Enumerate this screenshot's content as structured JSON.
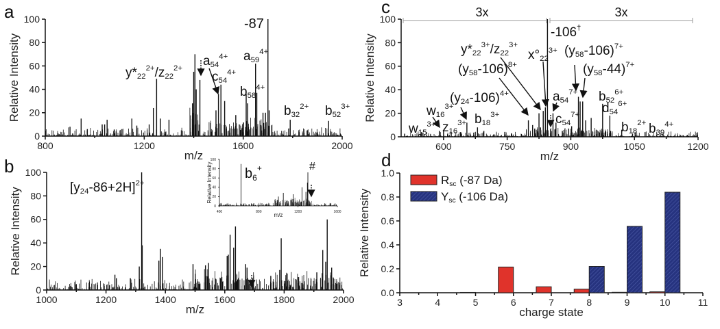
{
  "panel_labels": [
    "a",
    "b",
    "c",
    "d"
  ],
  "chart_data": [
    {
      "type": "line",
      "panel": "a",
      "xlabel": "m/z",
      "ylabel": "Relative Intensity",
      "xlim": [
        800,
        2000
      ],
      "ylim": [
        0,
        100
      ],
      "xticks": [
        800,
        1200,
        1600,
        2000
      ],
      "yticks": [
        0,
        20,
        40,
        60,
        80,
        100
      ],
      "peaks": [
        [
          900,
          8
        ],
        [
          945,
          15
        ],
        [
          970,
          6
        ],
        [
          1030,
          10
        ],
        [
          1040,
          10
        ],
        [
          1050,
          14
        ],
        [
          1110,
          6
        ],
        [
          1150,
          15
        ],
        [
          1170,
          9
        ],
        [
          1220,
          10
        ],
        [
          1237,
          24
        ],
        [
          1250,
          49
        ],
        [
          1265,
          15
        ],
        [
          1300,
          14
        ],
        [
          1395,
          28
        ],
        [
          1400,
          55
        ],
        [
          1405,
          70
        ],
        [
          1410,
          40
        ],
        [
          1425,
          48
        ],
        [
          1490,
          22
        ],
        [
          1500,
          36
        ],
        [
          1510,
          44
        ],
        [
          1525,
          30
        ],
        [
          1570,
          18
        ],
        [
          1612,
          36
        ],
        [
          1618,
          28
        ],
        [
          1650,
          62
        ],
        [
          1655,
          37
        ],
        [
          1680,
          20
        ],
        [
          1690,
          20
        ],
        [
          1700,
          100
        ],
        [
          1705,
          22
        ],
        [
          1790,
          14
        ],
        [
          1945,
          13
        ]
      ],
      "annotations": [
        {
          "segs": [
            [
              "",
              "-87"
            ]
          ]
        },
        {
          "segs": [
            [
              "",
              "y*"
            ],
            [
              "sub",
              "22"
            ],
            [
              "sup",
              "2+"
            ],
            [
              "",
              "/z"
            ],
            [
              "sub",
              "22"
            ],
            [
              "sup",
              "2+"
            ]
          ]
        },
        {
          "segs": [
            [
              "",
              "a"
            ],
            [
              "sub",
              "54"
            ],
            [
              "sup",
              "4+"
            ]
          ]
        },
        {
          "segs": [
            [
              "",
              "c"
            ],
            [
              "sub",
              "54"
            ],
            [
              "sup",
              "4+"
            ]
          ]
        },
        {
          "segs": [
            [
              "",
              "b"
            ],
            [
              "sub",
              "58"
            ],
            [
              "sup",
              "4+"
            ]
          ]
        },
        {
          "segs": [
            [
              "",
              "a"
            ],
            [
              "sub",
              "59"
            ],
            [
              "sup",
              "4+"
            ]
          ]
        },
        {
          "segs": [
            [
              "",
              "b"
            ],
            [
              "sub",
              "32"
            ],
            [
              "sup",
              "2+"
            ]
          ]
        },
        {
          "segs": [
            [
              "",
              "b"
            ],
            [
              "sub",
              "52"
            ],
            [
              "sup",
              "3+"
            ]
          ]
        }
      ]
    },
    {
      "type": "line",
      "panel": "b",
      "xlabel": "m/z",
      "ylabel": "Relative Intensity",
      "xlim": [
        1000,
        2000
      ],
      "ylim": [
        0,
        100
      ],
      "xticks": [
        1000,
        1200,
        1400,
        1600,
        1800,
        2000
      ],
      "yticks": [
        0,
        20,
        40,
        60,
        80,
        100
      ],
      "peaks": [
        [
          1230,
          13
        ],
        [
          1235,
          10
        ],
        [
          1282,
          10
        ],
        [
          1312,
          20
        ],
        [
          1320,
          100
        ],
        [
          1322,
          38
        ],
        [
          1378,
          25
        ],
        [
          1383,
          35
        ],
        [
          1390,
          28
        ],
        [
          1493,
          22
        ],
        [
          1535,
          21
        ],
        [
          1545,
          23
        ],
        [
          1608,
          29
        ],
        [
          1612,
          30
        ],
        [
          1618,
          47
        ],
        [
          1630,
          36
        ],
        [
          1636,
          54
        ],
        [
          1670,
          22
        ],
        [
          1675,
          19
        ],
        [
          1755,
          12
        ],
        [
          1785,
          17
        ],
        [
          1790,
          44
        ],
        [
          1810,
          14
        ],
        [
          1910,
          15
        ],
        [
          1930,
          34
        ],
        [
          1940,
          24
        ],
        [
          1945,
          60
        ],
        [
          1960,
          19
        ]
      ],
      "annotations": [
        {
          "segs": [
            [
              "",
              "[y"
            ],
            [
              "sub",
              "24"
            ],
            [
              "",
              "-86+2H]"
            ],
            [
              "sup",
              "2+"
            ]
          ]
        }
      ],
      "inset": {
        "xlabel": "m/z",
        "ylabel": "Relative Intensity",
        "xlim": [
          400,
          1600
        ],
        "ylim": [
          0,
          100
        ],
        "xticks": [
          400,
          800,
          1200,
          1600
        ],
        "yticks": [
          0,
          20,
          40,
          60,
          80,
          100
        ],
        "peaks": [
          [
            620,
            90
          ],
          [
            1000,
            20
          ],
          [
            1050,
            28
          ],
          [
            1150,
            25
          ],
          [
            1240,
            40
          ],
          [
            1280,
            30
          ],
          [
            1300,
            72
          ],
          [
            1295,
            50
          ]
        ],
        "annotations": [
          {
            "segs": [
              [
                "",
                "b"
              ],
              [
                "sub",
                "6"
              ],
              [
                "sup",
                "+"
              ]
            ]
          },
          {
            "segs": [
              [
                "",
                "#"
              ]
            ]
          }
        ]
      }
    },
    {
      "type": "line",
      "panel": "c",
      "xlabel": "m/z",
      "ylabel": "Relative Intensity",
      "xlim": [
        500,
        1200
      ],
      "ylim": [
        0,
        100
      ],
      "xticks": [
        600,
        750,
        900,
        1050,
        1200
      ],
      "yticks": [
        0,
        20,
        40,
        60,
        80,
        100
      ],
      "scale_labels": [
        "3x",
        "3x"
      ],
      "peaks": [
        [
          548,
          4
        ],
        [
          590,
          5
        ],
        [
          600,
          5
        ],
        [
          640,
          4
        ],
        [
          655,
          12
        ],
        [
          680,
          8
        ],
        [
          695,
          5
        ],
        [
          760,
          3
        ],
        [
          800,
          14
        ],
        [
          810,
          10
        ],
        [
          815,
          7
        ],
        [
          825,
          20
        ],
        [
          835,
          22
        ],
        [
          840,
          25
        ],
        [
          845,
          100
        ],
        [
          858,
          20
        ],
        [
          865,
          12
        ],
        [
          880,
          5
        ],
        [
          895,
          7
        ],
        [
          902,
          9
        ],
        [
          918,
          34
        ],
        [
          922,
          30
        ],
        [
          928,
          30
        ],
        [
          935,
          14
        ],
        [
          948,
          16
        ],
        [
          960,
          6
        ],
        [
          975,
          28
        ],
        [
          992,
          18
        ],
        [
          1020,
          6
        ],
        [
          1075,
          4
        ]
      ],
      "annotations": [
        {
          "segs": [
            [
              "",
              "-106"
            ],
            [
              "sup",
              "†"
            ]
          ]
        },
        {
          "segs": [
            [
              "",
              "y*"
            ],
            [
              "sub",
              "22"
            ],
            [
              "sup",
              "3+"
            ],
            [
              "",
              "/z"
            ],
            [
              "sub",
              "22"
            ],
            [
              "sup",
              "3+"
            ]
          ]
        },
        {
          "segs": [
            [
              "",
              "x°"
            ],
            [
              "sub",
              "22"
            ],
            [
              "sup",
              "3+"
            ]
          ]
        },
        {
          "segs": [
            [
              "",
              "(y"
            ],
            [
              "sub",
              "58"
            ],
            [
              "",
              "-106)"
            ],
            [
              "sup",
              "8+"
            ]
          ]
        },
        {
          "segs": [
            [
              "",
              "(y"
            ],
            [
              "sub",
              "58"
            ],
            [
              "",
              "-106)"
            ],
            [
              "sup",
              "7+"
            ]
          ]
        },
        {
          "segs": [
            [
              "",
              "(y"
            ],
            [
              "sub",
              "58"
            ],
            [
              "",
              "-44)"
            ],
            [
              "sup",
              "7+"
            ]
          ]
        },
        {
          "segs": [
            [
              "",
              "(y"
            ],
            [
              "sub",
              "24"
            ],
            [
              "",
              "-106)"
            ],
            [
              "sup",
              "4+"
            ]
          ]
        },
        {
          "segs": [
            [
              "",
              "a"
            ],
            [
              "sub",
              "54"
            ],
            [
              "sup",
              "7+"
            ]
          ]
        },
        {
          "segs": [
            [
              "",
              "c"
            ],
            [
              "sub",
              "54"
            ],
            [
              "sup",
              "7+"
            ]
          ]
        },
        {
          "segs": [
            [
              "",
              "b"
            ],
            [
              "sub",
              "52"
            ],
            [
              "sup",
              "6+"
            ]
          ]
        },
        {
          "segs": [
            [
              "",
              "d"
            ],
            [
              "sub",
              "54"
            ],
            [
              "sup",
              "6+"
            ]
          ]
        },
        {
          "segs": [
            [
              "",
              "b"
            ],
            [
              "sub",
              "18"
            ],
            [
              "sup",
              "2+"
            ]
          ]
        },
        {
          "segs": [
            [
              "",
              "b"
            ],
            [
              "sub",
              "39"
            ],
            [
              "sup",
              "4+"
            ]
          ]
        },
        {
          "segs": [
            [
              "",
              "w"
            ],
            [
              "sub",
              "16"
            ],
            [
              "sup",
              "3+"
            ]
          ]
        },
        {
          "segs": [
            [
              "",
              "w"
            ],
            [
              "sub",
              "15"
            ],
            [
              "sup",
              "3+"
            ]
          ]
        },
        {
          "segs": [
            [
              "",
              "z"
            ],
            [
              "sub",
              "16"
            ],
            [
              "sup",
              "3+"
            ]
          ]
        },
        {
          "segs": [
            [
              "",
              "b"
            ],
            [
              "sub",
              "18"
            ],
            [
              "sup",
              "3+"
            ]
          ]
        }
      ]
    },
    {
      "type": "bar",
      "panel": "d",
      "xlabel": "charge state",
      "ylabel": "Relative Intensity",
      "xlim": [
        3,
        11
      ],
      "ylim": [
        0,
        1.0
      ],
      "xticks": [
        3,
        4,
        5,
        6,
        7,
        8,
        9,
        10,
        11
      ],
      "yticks": [
        "0.0",
        "0.2",
        "0.4",
        "0.6",
        "0.8",
        "1.0"
      ],
      "categories": [
        5,
        6,
        7,
        8,
        9,
        10
      ],
      "series": [
        {
          "name": "R",
          "sub": "sc",
          "suffix": " (-87 Da)",
          "color": "#e0332b",
          "values": [
            0.003,
            0.215,
            0.05,
            0.03,
            0.004,
            0.008
          ]
        },
        {
          "name": "Y",
          "sub": "sc",
          "suffix": " (-106 Da)",
          "color": "#26337f",
          "values": [
            0,
            0,
            0,
            0.22,
            0.555,
            0.84
          ]
        }
      ],
      "legend": "top-left"
    }
  ]
}
